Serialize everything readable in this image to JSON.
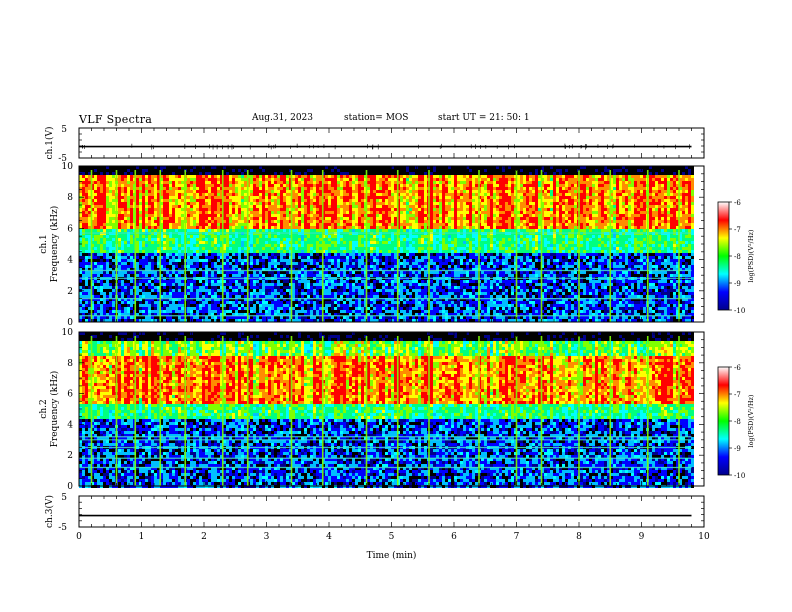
{
  "header": {
    "title": "VLF Spectra",
    "date": "Aug.31, 2023",
    "station": "station= MOS",
    "start": "start  UT =   21: 50: 1"
  },
  "chart_data": [
    {
      "type": "line",
      "name": "ch1-waveform",
      "ylabel": "ch.1(V)",
      "ylim": [
        -5,
        5
      ],
      "yticks": [
        "5",
        "-5"
      ],
      "xlim": [
        0,
        10
      ],
      "x": [
        0,
        9.8
      ],
      "values": [
        -1.2,
        -1.2
      ],
      "grid": false
    },
    {
      "type": "heatmap",
      "name": "ch1-spectrogram",
      "ylabel": "ch.1\nFrequency (kHz)",
      "ylim": [
        0,
        10
      ],
      "yticks": [
        "0",
        "2",
        "4",
        "6",
        "8",
        "10"
      ],
      "xlim": [
        0,
        10
      ],
      "data_extent_x": [
        0,
        9.8
      ],
      "colorbar": {
        "label": "log(PSD)(V²/Hz)",
        "range": [
          -10,
          -6
        ],
        "ticks": [
          "-6",
          "-7",
          "-8",
          "-9",
          "-10"
        ],
        "colors": [
          "#00008b",
          "#0000ff",
          "#00ffff",
          "#00ff00",
          "#ffff00",
          "#ff0000",
          "#ffffff"
        ]
      },
      "background_colors": [
        "#000000",
        "#00008b",
        "#0000ff"
      ],
      "hot_band_khz": [
        6,
        9.5
      ],
      "narrowband_lines_khz": [
        0.4,
        1.5,
        2.8,
        3.3,
        5.7
      ],
      "sferic_times_min": [
        0.2,
        0.6,
        0.9,
        1.3,
        1.7,
        2.3,
        2.7,
        3.4,
        3.9,
        4.6,
        5.1,
        5.6,
        6.4,
        7.0,
        7.4,
        8.0,
        8.5,
        9.1,
        9.6
      ]
    },
    {
      "type": "heatmap",
      "name": "ch2-spectrogram",
      "ylabel": "ch.2\nFrequency (kHz)",
      "ylim": [
        0,
        10
      ],
      "yticks": [
        "0",
        "2",
        "4",
        "6",
        "8",
        "10"
      ],
      "xlim": [
        0,
        10
      ],
      "data_extent_x": [
        0,
        9.8
      ],
      "colorbar": {
        "label": "log(PSD)(V²/Hz)",
        "range": [
          -10,
          -6
        ],
        "ticks": [
          "-6",
          "-7",
          "-8",
          "-9",
          "-10"
        ],
        "colors": [
          "#00008b",
          "#0000ff",
          "#00ffff",
          "#00ff00",
          "#ffff00",
          "#ff0000",
          "#ffffff"
        ]
      },
      "background_colors": [
        "#000000",
        "#00008b",
        "#0000ff"
      ],
      "hot_band_khz": [
        5.5,
        8.5
      ],
      "narrowband_lines_khz": [
        1.2,
        1.8,
        2.5,
        3.0,
        3.2
      ],
      "sferic_times_min": [
        0.2,
        0.6,
        0.9,
        1.3,
        1.7,
        2.3,
        2.7,
        3.4,
        3.9,
        4.6,
        5.1,
        5.6,
        6.4,
        7.0,
        7.4,
        8.0,
        8.5,
        9.1,
        9.6
      ]
    },
    {
      "type": "line",
      "name": "ch3-waveform",
      "ylabel": "ch.3(V)",
      "ylim": [
        -5,
        5
      ],
      "yticks": [
        "5",
        "-5"
      ],
      "xlim": [
        0,
        10
      ],
      "x": [
        0,
        9.8
      ],
      "values": [
        -1.3,
        -1.3
      ],
      "grid": false
    }
  ],
  "x_axis": {
    "label": "Time  (min)",
    "ticks": [
      "0",
      "1",
      "2",
      "3",
      "4",
      "5",
      "6",
      "7",
      "8",
      "9",
      "10"
    ]
  }
}
